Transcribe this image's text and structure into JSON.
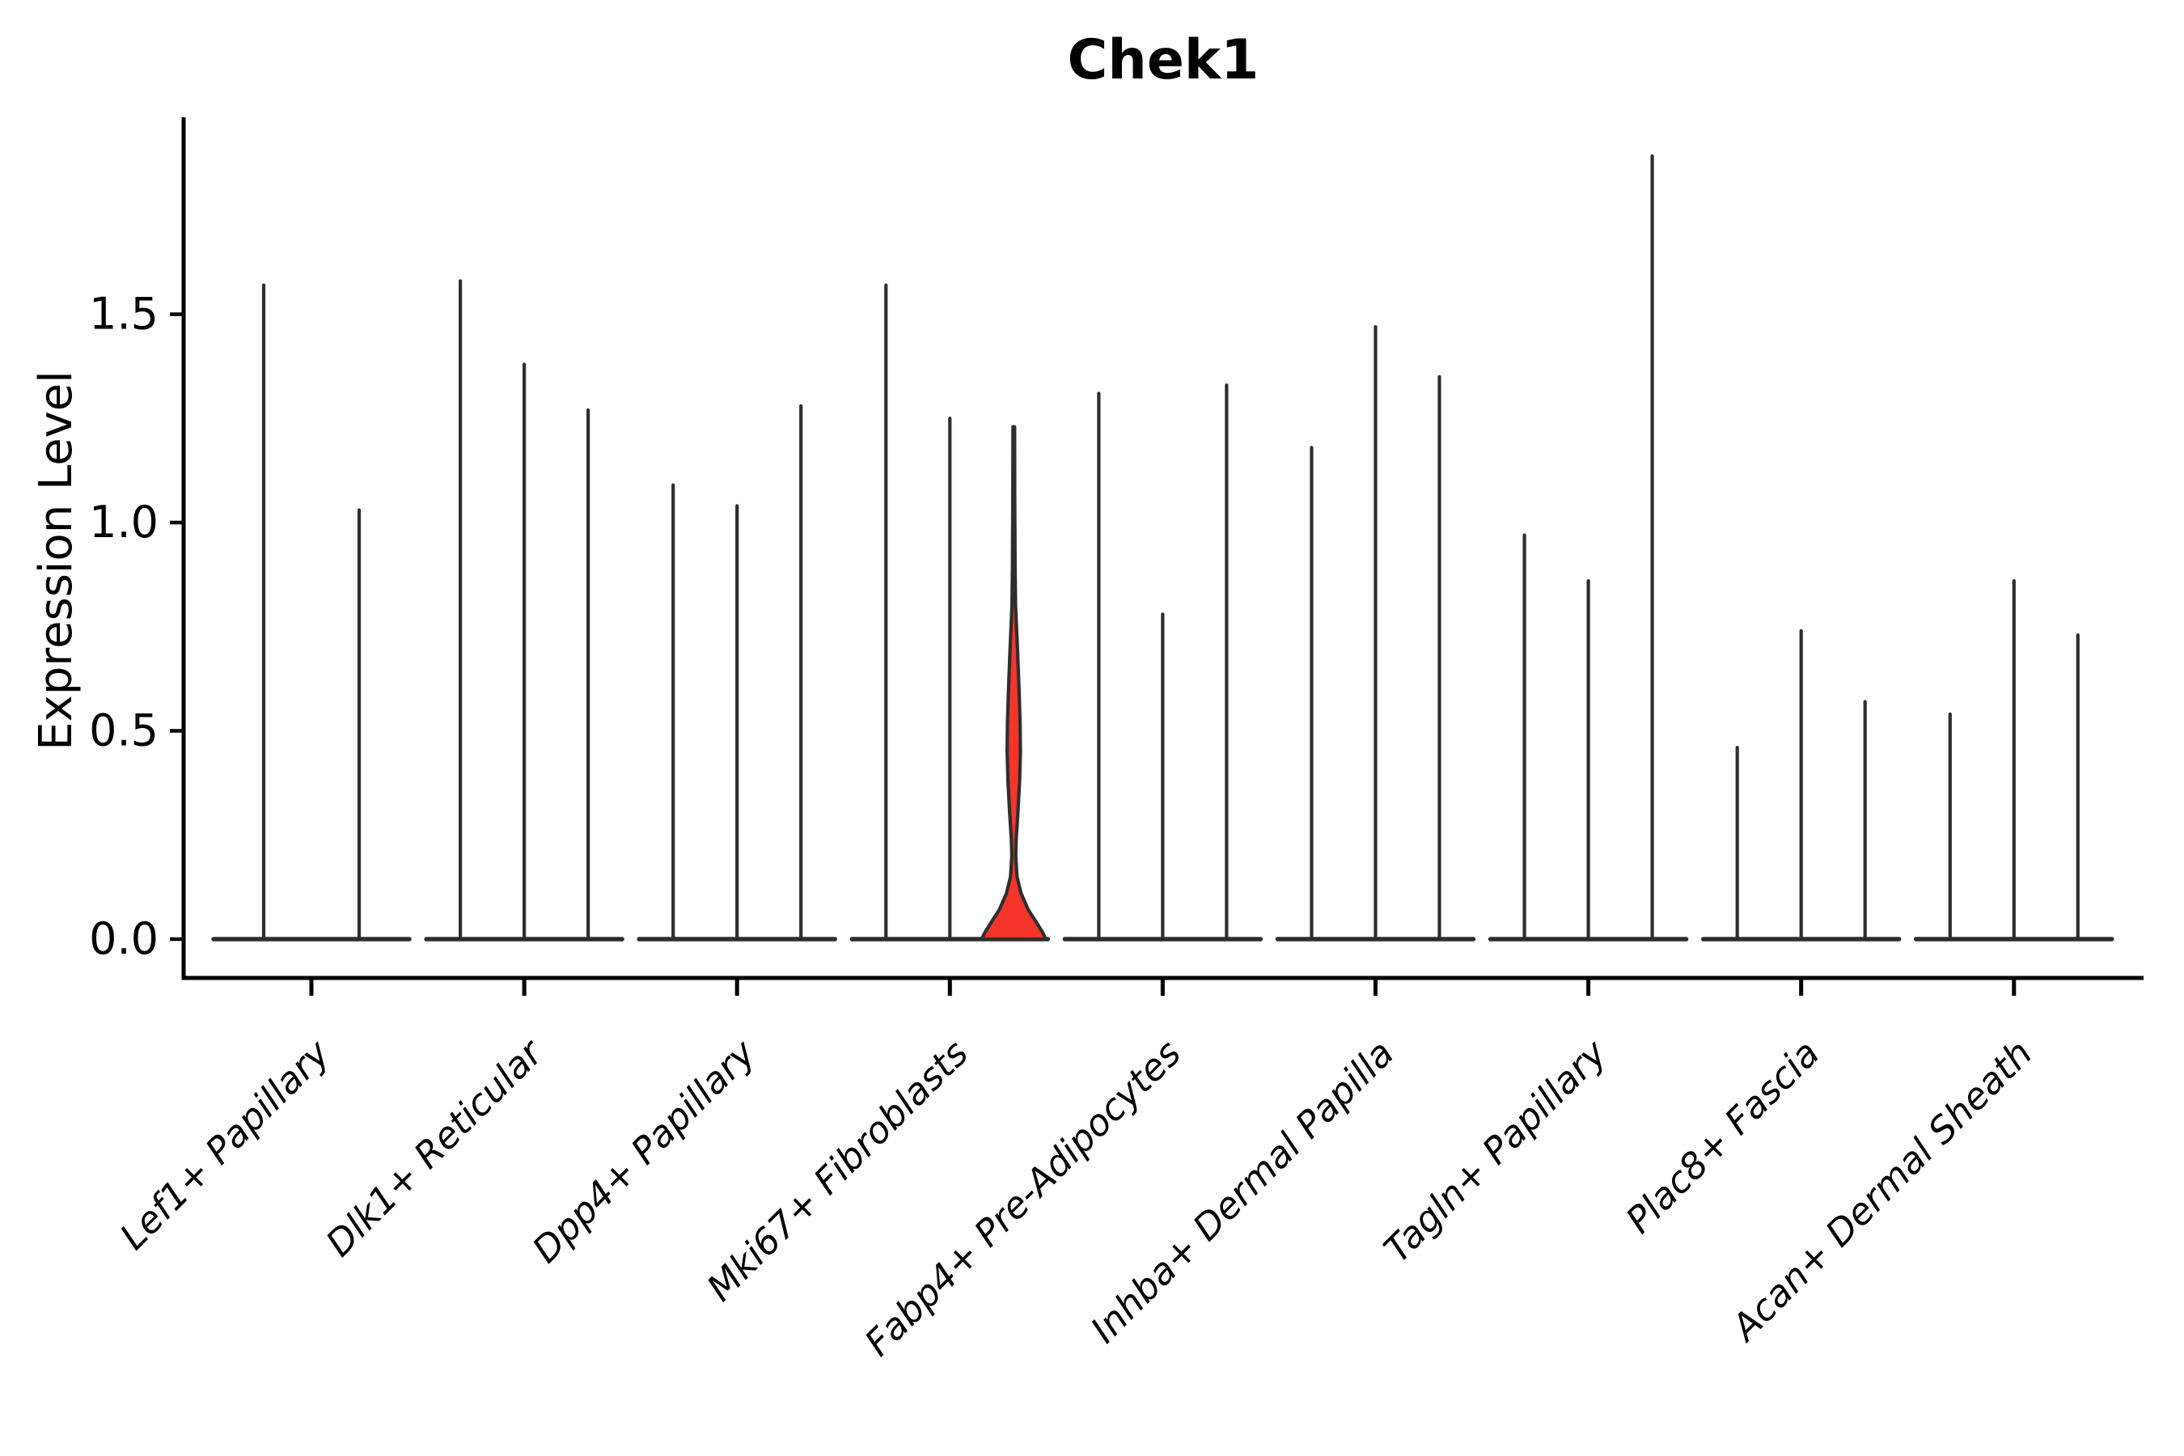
{
  "title": "Chek1",
  "axes": {
    "ylabel": "Expression Level",
    "ytick_labels": [
      "0.0",
      "0.5",
      "1.0",
      "1.5"
    ],
    "ytick_values": [
      0.0,
      0.5,
      1.0,
      1.5
    ]
  },
  "colors": {
    "violin_edge": "#2e2e2e",
    "axis_color": "#000000",
    "highlight_fill": "#f5352a",
    "background": "#ffffff"
  },
  "chart_data": {
    "type": "violin",
    "title": "Chek1",
    "xlabel": "",
    "ylabel": "Expression Level",
    "ylim": [
      -0.09,
      1.97
    ],
    "grid": false,
    "legend": "none",
    "categories": [
      "Lef1+ Papillary",
      "Dlk1+ Reticular",
      "Dpp4+ Papillary",
      "Mki67+ Fibroblasts",
      "Fabp4+ Pre-Adipocytes",
      "Inhba+ Dermal Papilla",
      "Tagln+ Papillary",
      "Plac8+ Fascia",
      "Acan+ Dermal Sheath"
    ],
    "groups": [
      {
        "category": "Lef1+ Papillary",
        "violin_max_expression": [
          1.57,
          1.03
        ]
      },
      {
        "category": "Dlk1+ Reticular",
        "violin_max_expression": [
          1.58,
          1.38,
          1.27
        ]
      },
      {
        "category": "Dpp4+ Papillary",
        "violin_max_expression": [
          1.09,
          1.04,
          1.28
        ]
      },
      {
        "category": "Mki67+ Fibroblasts",
        "violin_max_expression": [
          1.57,
          1.25,
          1.23
        ]
      },
      {
        "category": "Fabp4+ Pre-Adipocytes",
        "violin_max_expression": [
          1.31,
          0.78,
          1.33
        ]
      },
      {
        "category": "Inhba+ Dermal Papilla",
        "violin_max_expression": [
          1.18,
          1.47,
          1.35
        ]
      },
      {
        "category": "Tagln+ Papillary",
        "violin_max_expression": [
          0.97,
          0.86,
          1.88
        ]
      },
      {
        "category": "Plac8+ Fascia",
        "violin_max_expression": [
          0.46,
          0.74,
          0.57
        ]
      },
      {
        "category": "Acan+ Dermal Sheath",
        "violin_max_expression": [
          0.54,
          0.86,
          0.73
        ]
      }
    ],
    "highlight": {
      "category": "Mki67+ Fibroblasts",
      "violin_index": 2,
      "max_expression": 1.23,
      "fill": "#f5352a",
      "density_profile_value_halfwidth": [
        [
          1.23,
          1.0
        ],
        [
          1.05,
          1.2
        ],
        [
          0.9,
          1.6
        ],
        [
          0.8,
          2.2
        ],
        [
          0.7,
          4.5
        ],
        [
          0.6,
          6.5
        ],
        [
          0.52,
          7.8
        ],
        [
          0.45,
          8.2
        ],
        [
          0.38,
          7.2
        ],
        [
          0.3,
          5.0
        ],
        [
          0.24,
          3.0
        ],
        [
          0.2,
          2.4
        ],
        [
          0.15,
          4.0
        ],
        [
          0.11,
          9.0
        ],
        [
          0.07,
          18.0
        ],
        [
          0.04,
          28.0
        ],
        [
          0.015,
          36.0
        ],
        [
          0.0,
          39.5
        ]
      ]
    }
  }
}
